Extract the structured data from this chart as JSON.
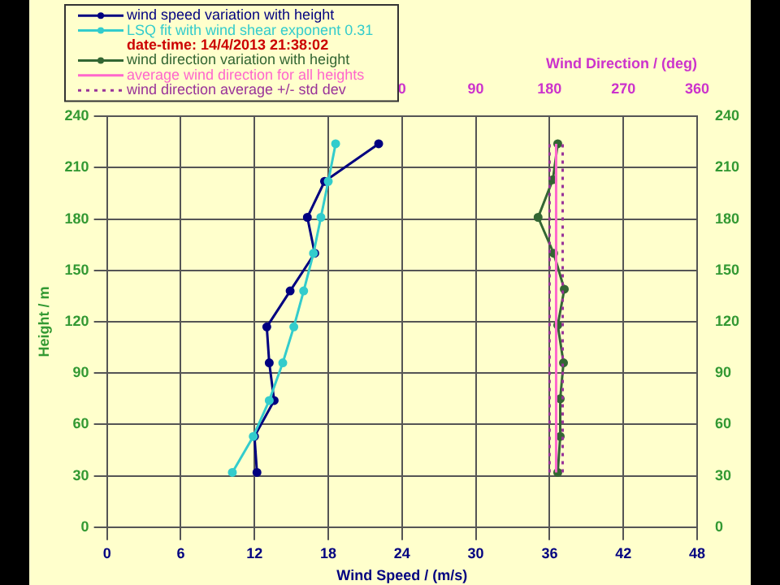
{
  "chart_data": {
    "type": "line",
    "xlabel": "Wind Speed / (m/s)",
    "x2label": "Wind Direction / (deg)",
    "ylabel": "Height / m",
    "annotations": [
      "date-time: 14/4/2013 21:38:02"
    ],
    "xlim": [
      0,
      48
    ],
    "xticks": [
      0,
      6,
      12,
      18,
      24,
      30,
      36,
      42,
      48
    ],
    "x2lim": [
      -360,
      360
    ],
    "x2ticks": [
      0,
      90,
      180,
      270,
      360
    ],
    "ylim": [
      0,
      240
    ],
    "yticks": [
      0,
      30,
      60,
      90,
      120,
      150,
      180,
      210,
      240
    ],
    "y2lim": [
      0,
      240
    ],
    "y2ticks": [
      0,
      30,
      60,
      90,
      120,
      150,
      180,
      210,
      240
    ],
    "grid": true,
    "legend": "top left",
    "series": [
      {
        "name": "wind speed variation with height",
        "color": "#000080",
        "marker": "circle",
        "line_style": "solid",
        "x": [
          12.2,
          12.0,
          13.6,
          13.2,
          13.0,
          14.9,
          16.9,
          16.3,
          17.7,
          22.1
        ],
        "values": [
          32,
          53,
          74,
          96,
          117,
          138,
          160,
          181,
          202,
          224
        ]
      },
      {
        "name": "LSQ fit with wind shear exponent 0.31",
        "color": "#33cccc",
        "marker": "circle",
        "line_style": "solid",
        "x": [
          10.2,
          11.9,
          13.2,
          14.3,
          15.2,
          16.0,
          16.8,
          17.4,
          18.0,
          18.6
        ],
        "values": [
          32,
          53,
          74,
          96,
          117,
          138,
          160,
          181,
          202,
          224
        ]
      },
      {
        "name": "wind direction variation with height",
        "color": "#336633",
        "marker": "circle",
        "line_style": "solid",
        "axis": "x2",
        "x": [
          190,
          193,
          193,
          197,
          190,
          198,
          185,
          166,
          184,
          190
        ],
        "values": [
          32,
          53,
          75,
          96,
          118,
          139,
          160,
          181,
          203,
          224
        ]
      },
      {
        "name": "average wind direction for all heights",
        "color": "#ff66cc",
        "marker": "none",
        "line_style": "solid",
        "axis": "x2",
        "x": [
          188,
          188
        ],
        "values": [
          32,
          224
        ]
      },
      {
        "name": "wind direction average +/- std dev",
        "color": "#993399",
        "marker": "none",
        "line_style": "dotted",
        "axis": "x2",
        "x": [
          180,
          180
        ],
        "values": [
          32,
          224
        ]
      },
      {
        "color": "#993399",
        "marker": "none",
        "line_style": "dotted",
        "axis": "x2",
        "x": [
          196,
          196
        ],
        "values": [
          32,
          224
        ]
      }
    ]
  }
}
